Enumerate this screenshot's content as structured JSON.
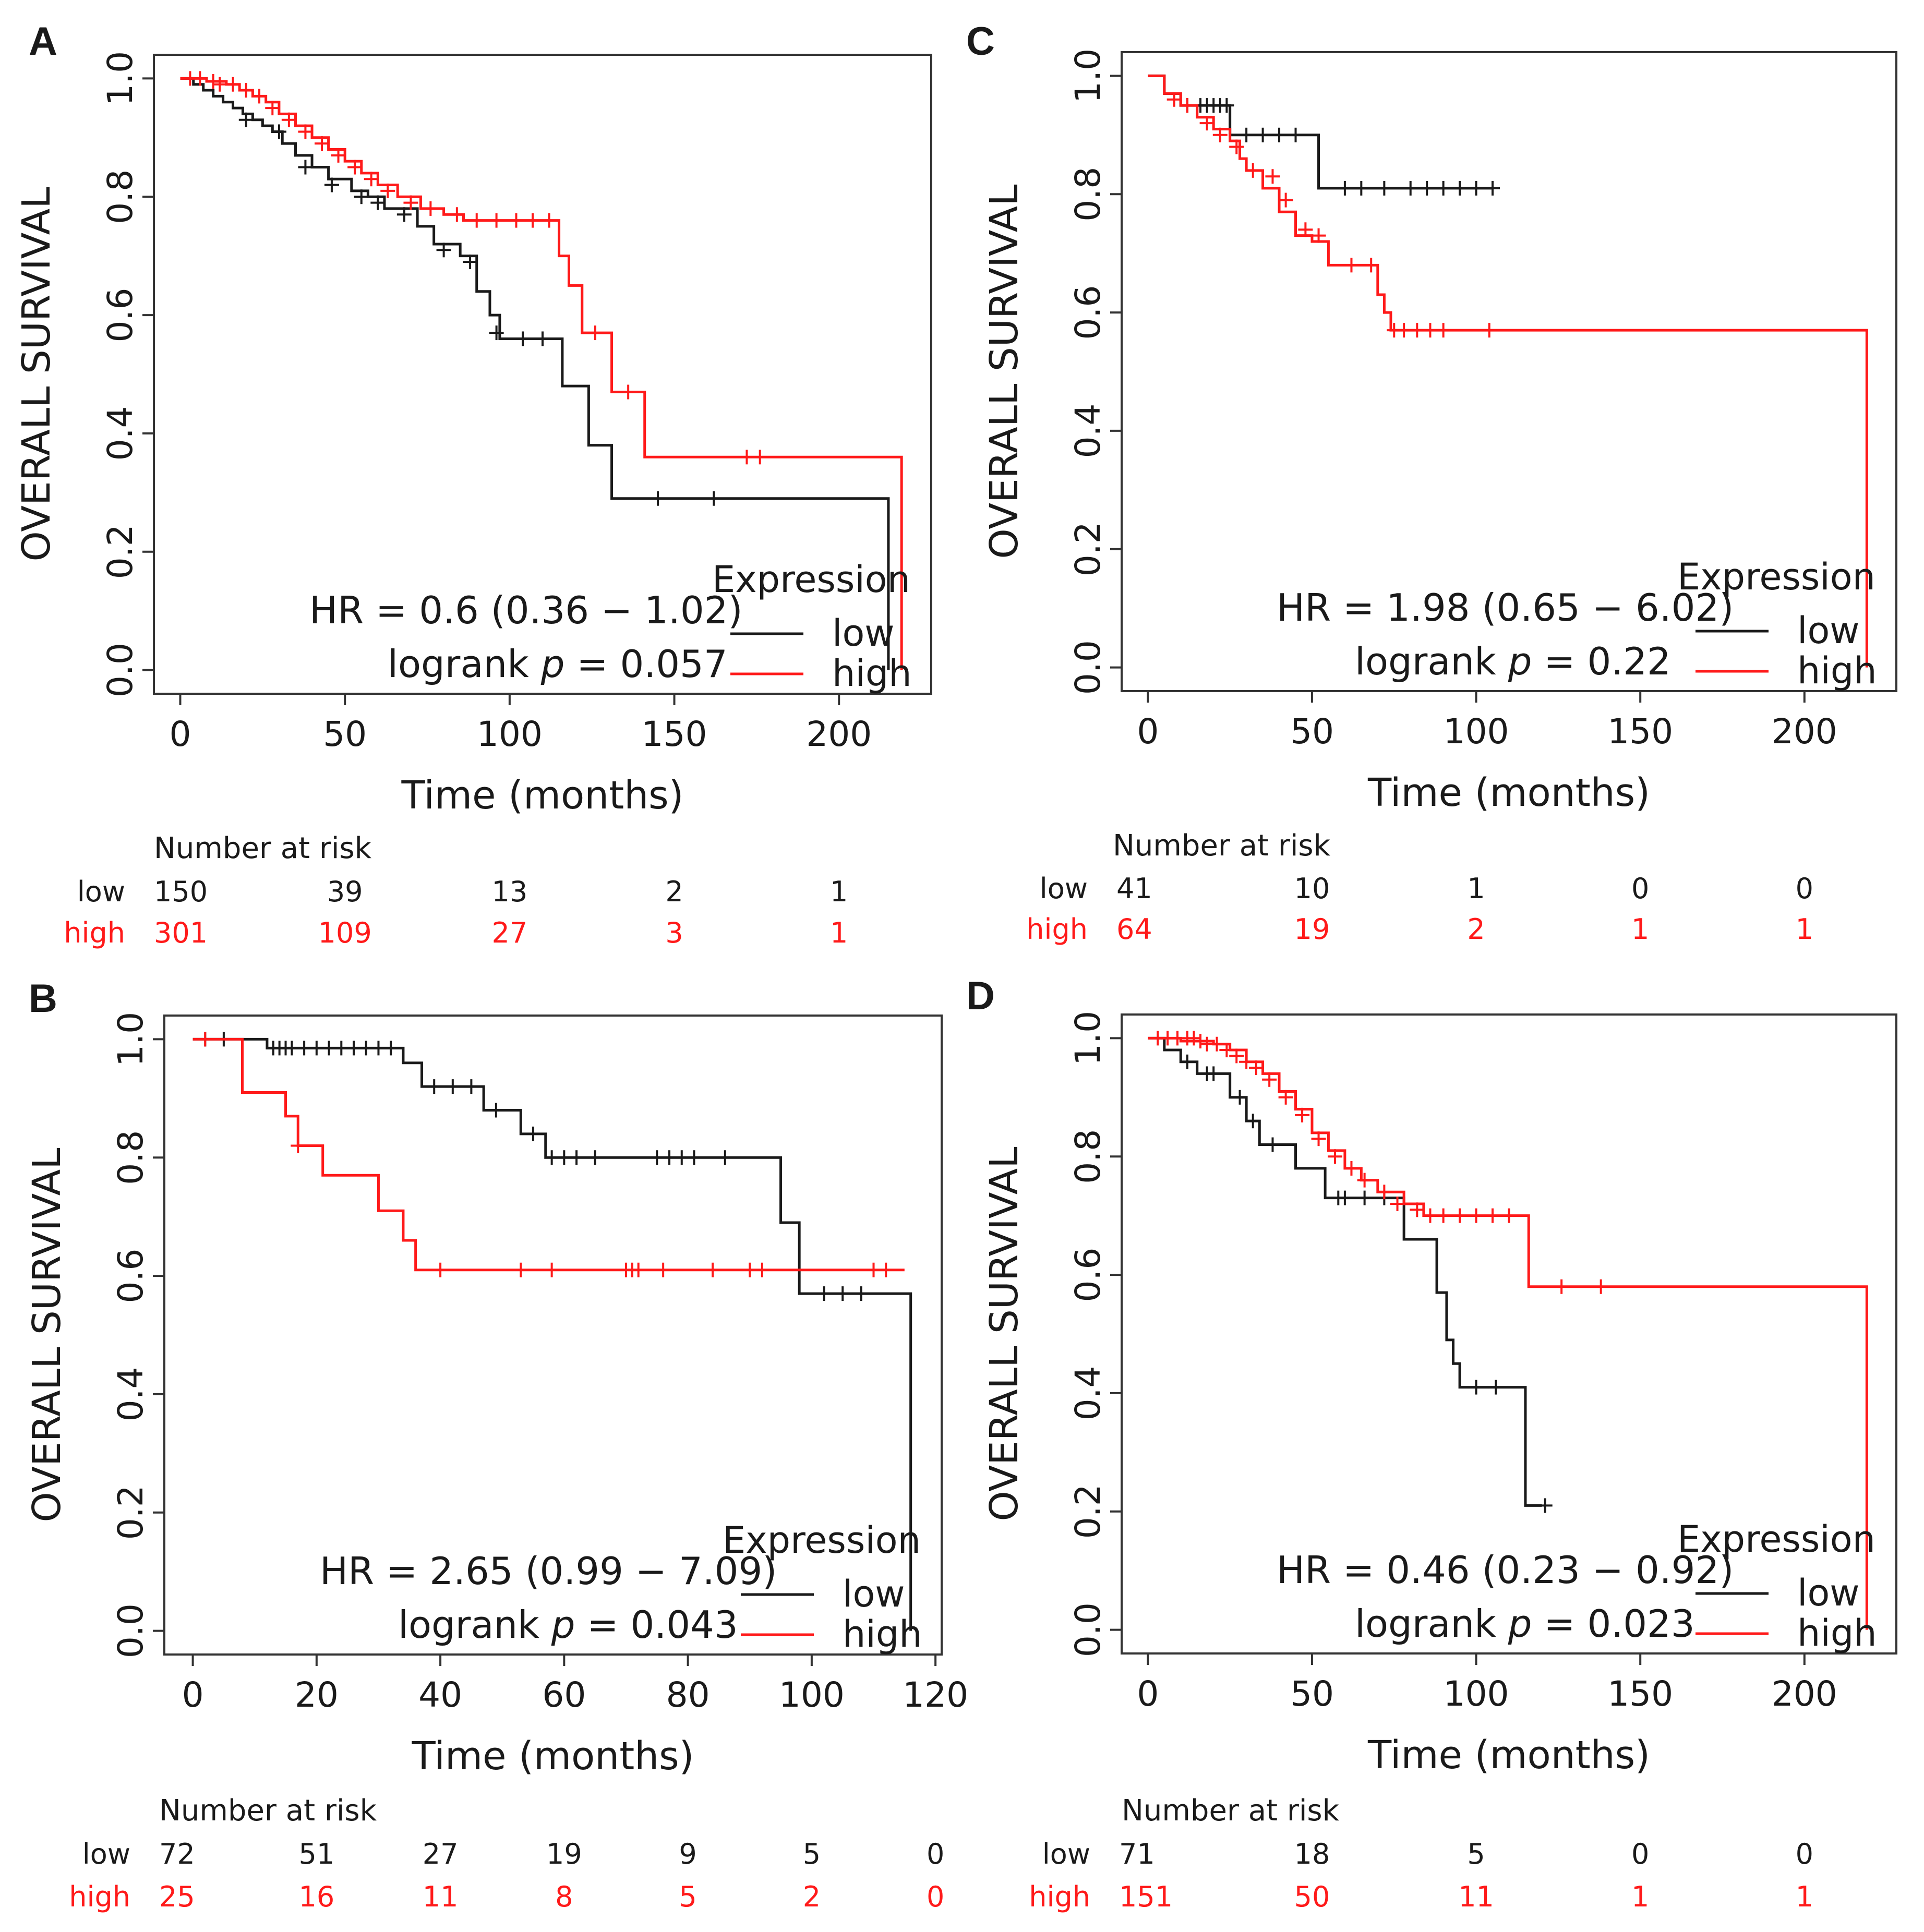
{
  "colors": {
    "low": "#1a1a1a",
    "high": "#ff1a1a"
  },
  "common": {
    "ylabel": "OVERALL SURVIVAL",
    "xlabel": "Time (months)",
    "legend_title": "Expression",
    "legend_low": "low",
    "legend_high": "high",
    "risk_title": "Number at risk",
    "logrank_prefix": "logrank ",
    "p_symbol": "p",
    "yticks": [
      "0.0",
      "0.2",
      "0.4",
      "0.6",
      "0.8",
      "1.0"
    ]
  },
  "chart_data": [
    {
      "panel": "A",
      "type": "line",
      "title": "",
      "xlabel": "Time (months)",
      "ylabel": "OVERALL SURVIVAL",
      "xlim": [
        -8,
        228
      ],
      "ylim": [
        -0.04,
        1.04
      ],
      "xticks": [
        "0",
        "50",
        "100",
        "150",
        "200"
      ],
      "xtick_values": [
        0,
        50,
        100,
        150,
        200
      ],
      "hr_text": "HR = 0.6 (0.36 − 1.02)",
      "p_text": " = 0.057",
      "risk_low": [
        "150",
        "39",
        "13",
        "2",
        "1"
      ],
      "risk_high": [
        "301",
        "109",
        "27",
        "3",
        "1"
      ],
      "series": [
        {
          "name": "low",
          "x": [
            0,
            4,
            7,
            10,
            13,
            16,
            19,
            22,
            25,
            28,
            31,
            35,
            40,
            45,
            52,
            57,
            62,
            72,
            77,
            85,
            90,
            94,
            97,
            100,
            116,
            124,
            131,
            215,
            215
          ],
          "y": [
            1.0,
            0.99,
            0.98,
            0.97,
            0.96,
            0.95,
            0.94,
            0.93,
            0.92,
            0.91,
            0.89,
            0.87,
            0.85,
            0.83,
            0.81,
            0.8,
            0.78,
            0.75,
            0.72,
            0.7,
            0.64,
            0.6,
            0.56,
            0.56,
            0.48,
            0.38,
            0.29,
            0.29,
            0.0
          ],
          "censor_x": [
            20,
            30,
            38,
            46,
            55,
            60,
            68,
            80,
            88,
            96,
            104,
            110,
            145,
            162
          ],
          "censor_y": [
            0.93,
            0.91,
            0.85,
            0.82,
            0.8,
            0.79,
            0.77,
            0.71,
            0.69,
            0.57,
            0.56,
            0.56,
            0.29,
            0.29
          ]
        },
        {
          "name": "high",
          "x": [
            0,
            8,
            14,
            18,
            22,
            26,
            30,
            35,
            40,
            45,
            50,
            55,
            60,
            66,
            73,
            80,
            86,
            92,
            115,
            118,
            122,
            131,
            141,
            219,
            219
          ],
          "y": [
            1.0,
            0.995,
            0.99,
            0.98,
            0.97,
            0.96,
            0.94,
            0.92,
            0.9,
            0.88,
            0.86,
            0.84,
            0.82,
            0.8,
            0.78,
            0.77,
            0.76,
            0.76,
            0.7,
            0.65,
            0.57,
            0.47,
            0.36,
            0.36,
            0.0
          ],
          "censor_x": [
            3,
            6,
            10,
            12,
            16,
            20,
            24,
            28,
            33,
            38,
            43,
            48,
            53,
            58,
            63,
            70,
            76,
            84,
            90,
            96,
            102,
            107,
            112,
            126,
            136,
            172,
            176
          ],
          "censor_y": [
            1.0,
            1.0,
            0.995,
            0.99,
            0.99,
            0.98,
            0.97,
            0.95,
            0.93,
            0.91,
            0.89,
            0.87,
            0.85,
            0.83,
            0.81,
            0.79,
            0.78,
            0.77,
            0.76,
            0.76,
            0.76,
            0.76,
            0.76,
            0.57,
            0.47,
            0.36,
            0.36
          ]
        }
      ]
    },
    {
      "panel": "C",
      "type": "line",
      "title": "",
      "xlabel": "Time (months)",
      "ylabel": "OVERALL SURVIVAL",
      "xlim": [
        -8,
        228
      ],
      "ylim": [
        -0.04,
        1.04
      ],
      "xticks": [
        "0",
        "50",
        "100",
        "150",
        "200"
      ],
      "xtick_values": [
        0,
        50,
        100,
        150,
        200
      ],
      "hr_text": "HR = 1.98 (0.65 − 6.02)",
      "p_text": " = 0.22",
      "risk_low": [
        "41",
        "10",
        "1",
        "0",
        "0"
      ],
      "risk_high": [
        "64",
        "19",
        "2",
        "1",
        "1"
      ],
      "series": [
        {
          "name": "low",
          "x": [
            0,
            5,
            10,
            15,
            25,
            52,
            105
          ],
          "y": [
            1.0,
            0.97,
            0.95,
            0.95,
            0.9,
            0.81,
            0.81
          ],
          "censor_x": [
            12,
            16,
            18,
            20,
            22,
            24,
            30,
            35,
            40,
            45,
            60,
            65,
            72,
            80,
            85,
            90,
            95,
            100,
            105
          ],
          "censor_y": [
            0.95,
            0.95,
            0.95,
            0.95,
            0.95,
            0.95,
            0.9,
            0.9,
            0.9,
            0.9,
            0.81,
            0.81,
            0.81,
            0.81,
            0.81,
            0.81,
            0.81,
            0.81,
            0.81
          ]
        },
        {
          "name": "high",
          "x": [
            0,
            5,
            10,
            15,
            20,
            25,
            28,
            30,
            35,
            40,
            45,
            50,
            55,
            70,
            72,
            74,
            219,
            219
          ],
          "y": [
            1.0,
            0.97,
            0.95,
            0.93,
            0.91,
            0.89,
            0.86,
            0.84,
            0.81,
            0.77,
            0.73,
            0.72,
            0.68,
            0.63,
            0.6,
            0.57,
            0.57,
            0.0
          ],
          "censor_x": [
            8,
            12,
            18,
            22,
            27,
            32,
            38,
            42,
            48,
            52,
            62,
            68,
            75,
            78,
            82,
            86,
            90,
            104
          ],
          "censor_y": [
            0.96,
            0.95,
            0.92,
            0.9,
            0.88,
            0.84,
            0.83,
            0.79,
            0.74,
            0.73,
            0.68,
            0.68,
            0.57,
            0.57,
            0.57,
            0.57,
            0.57,
            0.57
          ]
        }
      ]
    },
    {
      "panel": "B",
      "type": "line",
      "title": "",
      "xlabel": "Time (months)",
      "ylabel": "OVERALL SURVIVAL",
      "xlim": [
        -4.6,
        121
      ],
      "ylim": [
        -0.04,
        1.04
      ],
      "xticks": [
        "0",
        "20",
        "40",
        "60",
        "80",
        "100",
        "120"
      ],
      "xtick_values": [
        0,
        20,
        40,
        60,
        80,
        100,
        120
      ],
      "hr_text": "HR = 2.65 (0.99 − 7.09)",
      "p_text": " = 0.043",
      "risk_low": [
        "72",
        "51",
        "27",
        "19",
        "9",
        "5",
        "0"
      ],
      "risk_high": [
        "25",
        "16",
        "11",
        "8",
        "5",
        "2",
        "0"
      ],
      "series": [
        {
          "name": "low",
          "x": [
            0,
            12,
            34,
            37,
            47,
            53,
            57,
            95,
            98,
            116,
            116
          ],
          "y": [
            1.0,
            0.985,
            0.96,
            0.92,
            0.88,
            0.84,
            0.8,
            0.69,
            0.57,
            0.57,
            0.0
          ],
          "censor_x": [
            2,
            5,
            13,
            14,
            15,
            16,
            18,
            20,
            22,
            24,
            26,
            28,
            30,
            32,
            39,
            42,
            45,
            49,
            55,
            58,
            60,
            62,
            65,
            75,
            77,
            79,
            81,
            86,
            102,
            105,
            108
          ],
          "censor_y": [
            1.0,
            1.0,
            0.985,
            0.985,
            0.985,
            0.985,
            0.985,
            0.985,
            0.985,
            0.985,
            0.985,
            0.985,
            0.985,
            0.985,
            0.92,
            0.92,
            0.92,
            0.88,
            0.84,
            0.8,
            0.8,
            0.8,
            0.8,
            0.8,
            0.8,
            0.8,
            0.8,
            0.8,
            0.57,
            0.57,
            0.57
          ]
        },
        {
          "name": "high",
          "x": [
            0,
            8,
            15,
            17,
            21,
            30,
            34,
            36,
            115
          ],
          "y": [
            1.0,
            0.91,
            0.87,
            0.82,
            0.77,
            0.71,
            0.66,
            0.61,
            0.61
          ],
          "censor_x": [
            2,
            17,
            40,
            53,
            58,
            70,
            71,
            72,
            76,
            84,
            90,
            92,
            110,
            112
          ],
          "censor_y": [
            1.0,
            0.82,
            0.61,
            0.61,
            0.61,
            0.61,
            0.61,
            0.61,
            0.61,
            0.61,
            0.61,
            0.61,
            0.61,
            0.61
          ]
        }
      ]
    },
    {
      "panel": "D",
      "type": "line",
      "title": "",
      "xlabel": "Time (months)",
      "ylabel": "OVERALL SURVIVAL",
      "xlim": [
        -8,
        228
      ],
      "ylim": [
        -0.04,
        1.04
      ],
      "xticks": [
        "0",
        "50",
        "100",
        "150",
        "200"
      ],
      "xtick_values": [
        0,
        50,
        100,
        150,
        200
      ],
      "hr_text": "HR = 0.46 (0.23 − 0.92)",
      "p_text": " = 0.023",
      "risk_low": [
        "71",
        "18",
        "5",
        "0",
        "0"
      ],
      "risk_high": [
        "151",
        "50",
        "11",
        "1",
        "1"
      ],
      "series": [
        {
          "name": "low",
          "x": [
            0,
            5,
            10,
            15,
            25,
            30,
            34,
            45,
            54,
            78,
            88,
            91,
            93,
            95,
            115,
            120
          ],
          "y": [
            1.0,
            0.98,
            0.96,
            0.94,
            0.9,
            0.86,
            0.82,
            0.78,
            0.73,
            0.66,
            0.57,
            0.49,
            0.45,
            0.41,
            0.21,
            0.21
          ],
          "censor_x": [
            12,
            18,
            20,
            28,
            32,
            38,
            58,
            60,
            66,
            72,
            100,
            106,
            121
          ],
          "censor_y": [
            0.96,
            0.94,
            0.94,
            0.9,
            0.86,
            0.82,
            0.73,
            0.73,
            0.73,
            0.73,
            0.41,
            0.41,
            0.21
          ]
        },
        {
          "name": "high",
          "x": [
            0,
            10,
            20,
            25,
            30,
            35,
            40,
            45,
            50,
            55,
            60,
            65,
            70,
            78,
            84,
            114,
            116,
            219,
            219
          ],
          "y": [
            1.0,
            0.995,
            0.99,
            0.98,
            0.96,
            0.94,
            0.91,
            0.88,
            0.84,
            0.81,
            0.78,
            0.76,
            0.74,
            0.72,
            0.7,
            0.7,
            0.58,
            0.58,
            0.0
          ],
          "censor_x": [
            3,
            6,
            9,
            12,
            14,
            16,
            18,
            21,
            24,
            27,
            30,
            33,
            37,
            42,
            47,
            52,
            57,
            62,
            66,
            72,
            76,
            82,
            86,
            90,
            95,
            100,
            105,
            110,
            126,
            138
          ],
          "censor_y": [
            1.0,
            1.0,
            1.0,
            1.0,
            1.0,
            0.995,
            0.99,
            0.99,
            0.98,
            0.97,
            0.96,
            0.95,
            0.93,
            0.9,
            0.87,
            0.83,
            0.8,
            0.78,
            0.76,
            0.74,
            0.72,
            0.71,
            0.7,
            0.7,
            0.7,
            0.7,
            0.7,
            0.7,
            0.58,
            0.58
          ]
        }
      ]
    }
  ]
}
